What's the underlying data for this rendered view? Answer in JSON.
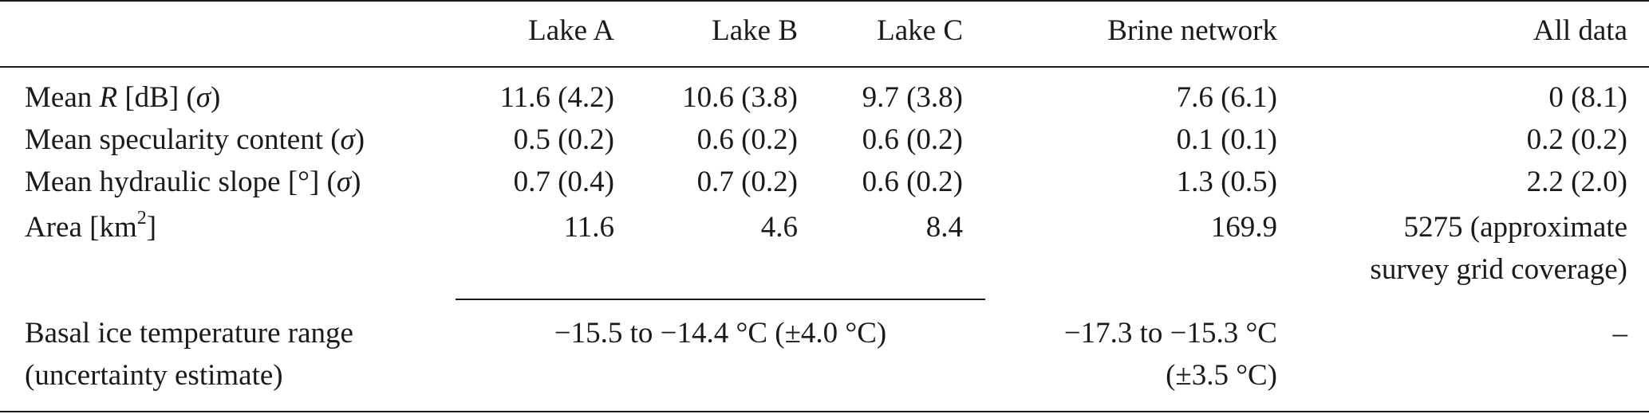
{
  "table": {
    "headers": {
      "lake_a": "Lake A",
      "lake_b": "Lake B",
      "lake_c": "Lake C",
      "brine": "Brine network",
      "all": "All data"
    },
    "rows": [
      {
        "label_pre": "Mean ",
        "label_var": "R",
        "label_mid": " [dB] (",
        "label_sig": "σ",
        "label_post": ")",
        "lake_a": "11.6 (4.2)",
        "lake_b": "10.6 (3.8)",
        "lake_c": "9.7 (3.8)",
        "brine": "7.6 (6.1)",
        "all": "0 (8.1)"
      },
      {
        "label_pre": "Mean specularity content (",
        "label_sig": "σ",
        "label_post": ")",
        "lake_a": "0.5 (0.2)",
        "lake_b": "0.6 (0.2)",
        "lake_c": "0.6 (0.2)",
        "brine": "0.1 (0.1)",
        "all": "0.2 (0.2)"
      },
      {
        "label_pre": "Mean hydraulic slope [°] (",
        "label_sig": "σ",
        "label_post": ")",
        "lake_a": "0.7 (0.4)",
        "lake_b": "0.7 (0.2)",
        "lake_c": "0.6 (0.2)",
        "brine": "1.3 (0.5)",
        "all": "2.2 (2.0)"
      },
      {
        "label_pre": "Area [km",
        "label_sup": "2",
        "label_post": "]",
        "lake_a": "11.6",
        "lake_b": "4.6",
        "lake_c": "8.4",
        "brine": "169.9",
        "all_line1": "5275 (approximate",
        "all_line2": "survey grid coverage)"
      },
      {
        "label_line1": "Basal ice temperature range",
        "label_line2": "(uncertainty estimate)",
        "lakes_span": "−15.5 to −14.4 °C (±4.0 °C)",
        "brine_line1": "−17.3 to −15.3 °C",
        "brine_line2": "(±3.5 °C)",
        "all": "–"
      }
    ]
  }
}
